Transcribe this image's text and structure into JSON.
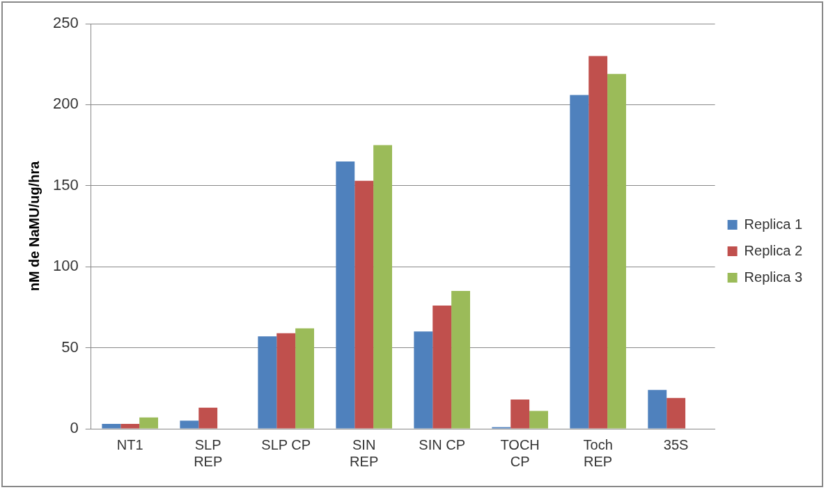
{
  "chart_data": {
    "type": "bar",
    "ylabel": "nM de NaMU/ug/hra",
    "categories": [
      "NT1",
      "SLP\nREP",
      "SLP CP",
      "SIN\nREP",
      "SIN CP",
      "TOCH\nCP",
      "Toch\nREP",
      "35S"
    ],
    "series": [
      {
        "name": "Replica 1",
        "color": "#4f81bd",
        "values": [
          3,
          5,
          57,
          165,
          60,
          1,
          206,
          24
        ]
      },
      {
        "name": "Replica 2",
        "color": "#c0504d",
        "values": [
          3,
          13,
          59,
          153,
          76,
          18,
          230,
          19
        ]
      },
      {
        "name": "Replica 3",
        "color": "#9bbb59",
        "values": [
          7,
          0,
          62,
          175,
          85,
          11,
          219,
          0
        ]
      }
    ],
    "ylim": [
      0,
      250
    ],
    "yticks": [
      0,
      50,
      100,
      150,
      200,
      250
    ],
    "grid": "y",
    "legend": "right"
  }
}
